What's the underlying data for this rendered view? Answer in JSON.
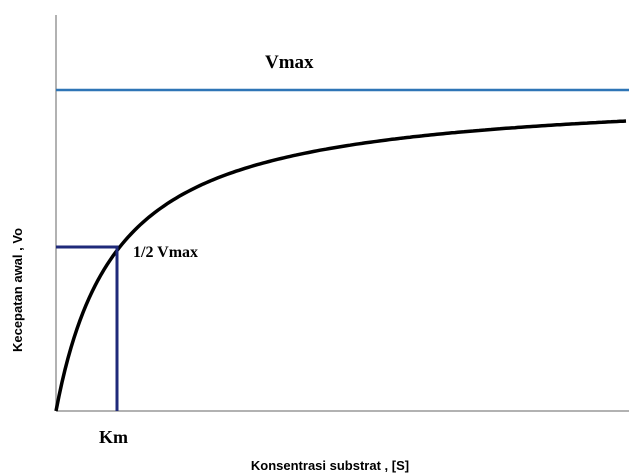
{
  "labels": {
    "vmax": "Vmax",
    "half_vmax": "1/2 Vmax",
    "km": "Km",
    "y_axis": "Kecepatan awal , Vo",
    "x_axis": "Konsentrasi substrat , [S]"
  }
}
